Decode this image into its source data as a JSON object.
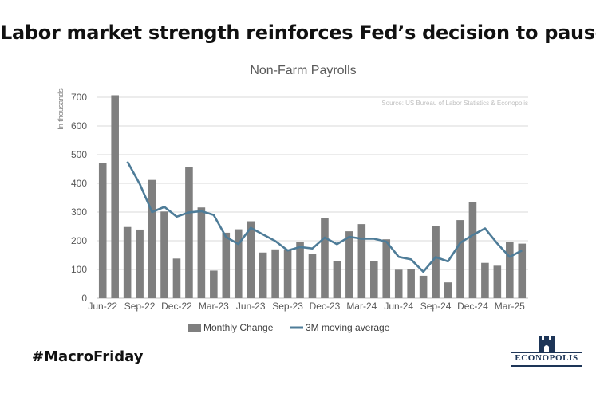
{
  "headline": "Labor market strength reinforces Fed’s decision to pause",
  "hashtag": "#MacroFriday",
  "logo": {
    "text": "ECONOPOLIS",
    "icon": "castle-tower-icon"
  },
  "colors": {
    "bar": "#7f7f7f",
    "line": "#4e7c98",
    "grid": "#d9d9d9",
    "text": "#595959",
    "brand": "#1d3557"
  },
  "chart_data": {
    "type": "bar",
    "title": "Non-Farm Payrolls",
    "ylabel": "In thousands",
    "source": "Source: US Bureau of Labor Statistics & Econopolis",
    "ylim": [
      0,
      700
    ],
    "yticks": [
      0,
      100,
      200,
      300,
      400,
      500,
      600,
      700
    ],
    "xticks": [
      "Jun-22",
      "Sep-22",
      "Dec-22",
      "Mar-23",
      "Jun-23",
      "Sep-23",
      "Dec-23",
      "Mar-24",
      "Jun-24",
      "Sep-24",
      "Dec-24",
      "Mar-25"
    ],
    "grid": true,
    "legend_position": "bottom",
    "categories": [
      "Jun-22",
      "Jul-22",
      "Aug-22",
      "Sep-22",
      "Oct-22",
      "Nov-22",
      "Dec-22",
      "Jan-23",
      "Feb-23",
      "Mar-23",
      "Apr-23",
      "May-23",
      "Jun-23",
      "Jul-23",
      "Aug-23",
      "Sep-23",
      "Oct-23",
      "Nov-23",
      "Dec-23",
      "Jan-24",
      "Feb-24",
      "Mar-24",
      "Apr-24",
      "May-24",
      "Jun-24",
      "Jul-24",
      "Aug-24",
      "Sep-24",
      "Oct-24",
      "Nov-24",
      "Dec-24",
      "Jan-25",
      "Feb-25",
      "Mar-25",
      "Apr-25"
    ],
    "series": [
      {
        "name": "Monthly Change",
        "type": "bar",
        "values": [
          472,
          707,
          248,
          239,
          412,
          302,
          138,
          456,
          316,
          96,
          228,
          240,
          268,
          159,
          170,
          168,
          197,
          155,
          280,
          130,
          233,
          258,
          129,
          205,
          99,
          100,
          78,
          252,
          55,
          272,
          334,
          123,
          113,
          196,
          190
        ]
      },
      {
        "name": "3M moving average",
        "type": "line",
        "values": [
          null,
          null,
          476,
          398,
          300,
          318,
          284,
          299,
          303,
          290,
          213,
          188,
          245,
          222,
          199,
          166,
          178,
          173,
          211,
          188,
          214,
          207,
          207,
          197,
          144,
          135,
          92,
          143,
          128,
          193,
          220,
          243,
          190,
          144,
          166
        ]
      }
    ]
  }
}
